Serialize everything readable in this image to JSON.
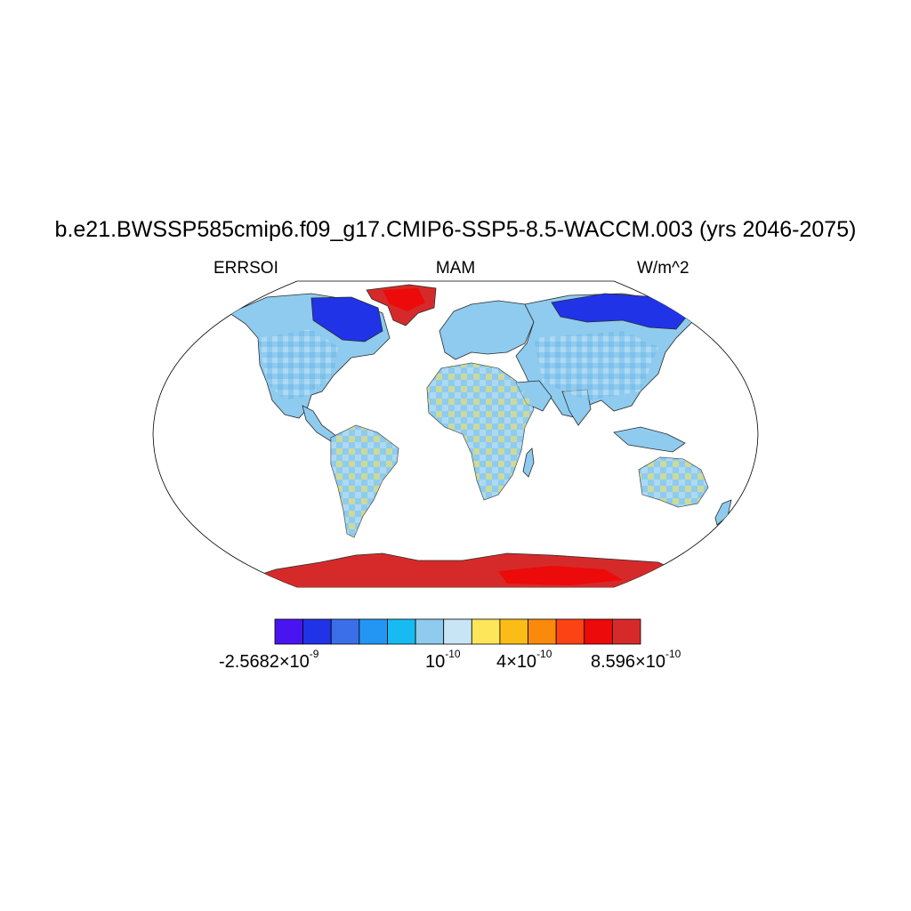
{
  "figure": {
    "title": "b.e21.BWSSP585cmip6.f09_g17.CMIP6-SSP5-8.5-WACCM.003 (yrs 2046-2075)",
    "variable": "ERRSOI",
    "season": "MAM",
    "units": "W/m^2"
  },
  "colorbar": {
    "colors": [
      "#4a14f0",
      "#2133e6",
      "#3b6fea",
      "#2396f4",
      "#17bbf2",
      "#8ecbee",
      "#c8e5f6",
      "#fde65a",
      "#fbbc17",
      "#fa8a0c",
      "#fc4314",
      "#ec0a0a",
      "#d62a2a"
    ],
    "labels": [
      {
        "mantissa": "-2.5682×",
        "base": "10",
        "exp": "-9"
      },
      {
        "mantissa": "",
        "base": "10",
        "exp": "-10"
      },
      {
        "mantissa": "4×",
        "base": "10",
        "exp": "-10"
      },
      {
        "mantissa": "8.596×",
        "base": "10",
        "exp": "-10"
      }
    ]
  },
  "map": {
    "projection": "Robinson",
    "ocean_color": "#ffffff",
    "region_colors": {
      "north_america": "#8ecbee",
      "canada_arctic": "#2133e6",
      "greenland": "#d62a2a",
      "south_america": "#8ecbee",
      "europe": "#8ecbee",
      "africa": "#8ecbee",
      "asia": "#8ecbee",
      "siberia": "#2133e6",
      "australia": "#8ecbee",
      "antarctica": "#d62a2a"
    }
  }
}
